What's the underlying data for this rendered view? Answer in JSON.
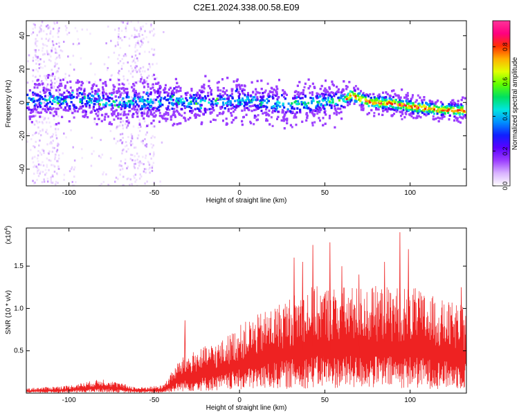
{
  "title": "C2E1.2024.338.00.58.E09",
  "chart_data": [
    {
      "type": "heatmap",
      "xlabel": "Height of straight line (km)",
      "ylabel": "Frequency (Hz)",
      "xlim": [
        -125,
        133
      ],
      "ylim": [
        -50,
        49
      ],
      "xticks": [
        -100,
        -50,
        0,
        50,
        100
      ],
      "yticks": [
        -40,
        -20,
        0,
        20,
        40
      ],
      "colorbar": {
        "label": "Normalized spectral amplitude",
        "range": [
          0,
          0.95
        ],
        "ticks": [
          "0.0",
          "0.2",
          "0.4",
          "0.6",
          "0.8"
        ],
        "colormap": [
          "#ffffff",
          "#d9b3ff",
          "#9b3dff",
          "#5a00ff",
          "#1020ff",
          "#0090ff",
          "#00e5e0",
          "#00e060",
          "#60ff00",
          "#e0ff00",
          "#ffb000",
          "#ff3000",
          "#ff0080",
          "#ff3399"
        ]
      },
      "ridge": [
        {
          "x": -120,
          "y": 2
        },
        {
          "x": -100,
          "y": 2
        },
        {
          "x": -80,
          "y": 1
        },
        {
          "x": -60,
          "y": 1
        },
        {
          "x": -40,
          "y": 1
        },
        {
          "x": -20,
          "y": 1
        },
        {
          "x": 0,
          "y": 2
        },
        {
          "x": 20,
          "y": 0
        },
        {
          "x": 40,
          "y": 0
        },
        {
          "x": 60,
          "y": 2
        },
        {
          "x": 65,
          "y": 5
        },
        {
          "x": 75,
          "y": 1
        },
        {
          "x": 90,
          "y": 0
        },
        {
          "x": 100,
          "y": -2
        },
        {
          "x": 110,
          "y": -3
        },
        {
          "x": 120,
          "y": -4
        },
        {
          "x": 133,
          "y": -4
        }
      ]
    },
    {
      "type": "line",
      "xlabel": "Height of straight line (km)",
      "ylabel": "SNR (10 * v/v)",
      "multiplier": "(x10",
      "multiplier_exp": "4",
      "multiplier_close": ")",
      "xlim": [
        -125,
        133
      ],
      "ylim": [
        0,
        1.95
      ],
      "xticks": [
        -100,
        -50,
        0,
        50,
        100
      ],
      "yticks": [
        0.5,
        1.0,
        1.5
      ],
      "ytick_labels": [
        "0.5",
        "1.0",
        "1.5"
      ],
      "color": "#ee2222",
      "envelope": [
        {
          "x": -125,
          "y": 0.05
        },
        {
          "x": -100,
          "y": 0.08
        },
        {
          "x": -80,
          "y": 0.15
        },
        {
          "x": -60,
          "y": 0.06
        },
        {
          "x": -45,
          "y": 0.08
        },
        {
          "x": -35,
          "y": 0.35
        },
        {
          "x": -25,
          "y": 0.45
        },
        {
          "x": -10,
          "y": 0.55
        },
        {
          "x": 0,
          "y": 0.7
        },
        {
          "x": 20,
          "y": 0.9
        },
        {
          "x": 40,
          "y": 1.1
        },
        {
          "x": 60,
          "y": 1.1
        },
        {
          "x": 80,
          "y": 1.1
        },
        {
          "x": 100,
          "y": 1.1
        },
        {
          "x": 120,
          "y": 0.95
        },
        {
          "x": 133,
          "y": 0.9
        }
      ],
      "peaks": [
        {
          "x": -32,
          "y": 0.86
        },
        {
          "x": 32,
          "y": 1.6
        },
        {
          "x": 37,
          "y": 1.55
        },
        {
          "x": 43,
          "y": 1.75
        },
        {
          "x": 53,
          "y": 1.78
        },
        {
          "x": 60,
          "y": 1.5
        },
        {
          "x": 70,
          "y": 1.4
        },
        {
          "x": 85,
          "y": 1.55
        },
        {
          "x": 94,
          "y": 1.9
        },
        {
          "x": 99,
          "y": 1.7
        },
        {
          "x": 130,
          "y": 1.25
        }
      ]
    }
  ]
}
